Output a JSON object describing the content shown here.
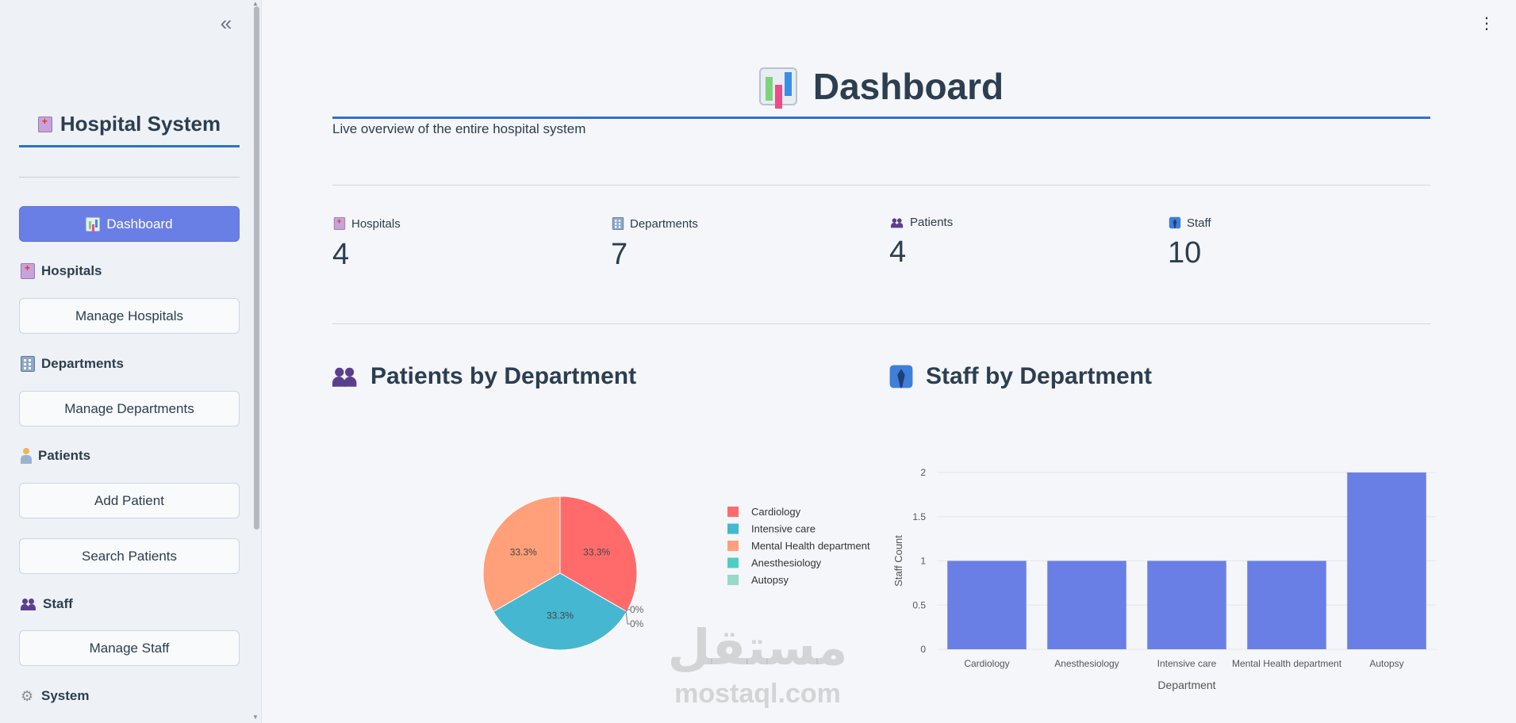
{
  "sidebar": {
    "brand_title": "Hospital System",
    "dashboard_label": "Dashboard",
    "sections": {
      "hospitals": {
        "title": "Hospitals",
        "buttons": [
          "Manage Hospitals"
        ]
      },
      "departments": {
        "title": "Departments",
        "buttons": [
          "Manage Departments"
        ]
      },
      "patients": {
        "title": "Patients",
        "buttons": [
          "Add Patient",
          "Search Patients"
        ]
      },
      "staff": {
        "title": "Staff",
        "buttons": [
          "Manage Staff"
        ]
      },
      "system": {
        "title": "System"
      }
    },
    "collapse_glyph": "«"
  },
  "main": {
    "title": "Dashboard",
    "subtitle": "Live overview of the entire hospital system",
    "metrics": [
      {
        "label": "Hospitals",
        "value": "4",
        "icon": "hospital-icon"
      },
      {
        "label": "Departments",
        "value": "7",
        "icon": "building-icon"
      },
      {
        "label": "Patients",
        "value": "4",
        "icon": "people-icon"
      },
      {
        "label": "Staff",
        "value": "10",
        "icon": "staff-icon"
      }
    ],
    "patients_title": "Patients by Department",
    "staff_title": "Staff by Department"
  },
  "watermark": {
    "arabic": "مستقل",
    "latin": "mostaql.com"
  },
  "colors": {
    "accent": "#6a7fe6",
    "underline": "#2f73c2",
    "bar": "#6a7fe6"
  },
  "chart_data": [
    {
      "type": "pie",
      "labels": [
        "Cardiology",
        "Intensive care",
        "Mental Health department",
        "Anesthesiology",
        "Autopsy"
      ],
      "values": [
        33.3,
        33.3,
        33.3,
        0,
        0
      ],
      "slice_labels": [
        "33.3%",
        "33.3%",
        "33.3%",
        "0%",
        "0%"
      ],
      "colors": [
        "#ff6b6b",
        "#45b7d1",
        "#ffa07a",
        "#4ecdc4",
        "#98d8c8"
      ],
      "legend_position": "right"
    },
    {
      "type": "bar",
      "categories": [
        "Cardiology",
        "Anesthesiology",
        "Intensive care",
        "Mental Health department",
        "Autopsy"
      ],
      "values": [
        1,
        1,
        1,
        1,
        2
      ],
      "xlabel": "Department",
      "ylabel": "Staff Count",
      "ylim": [
        0,
        2
      ],
      "yticks": [
        "0",
        "0.5",
        "1",
        "1.5",
        "2"
      ],
      "grid": true
    }
  ]
}
